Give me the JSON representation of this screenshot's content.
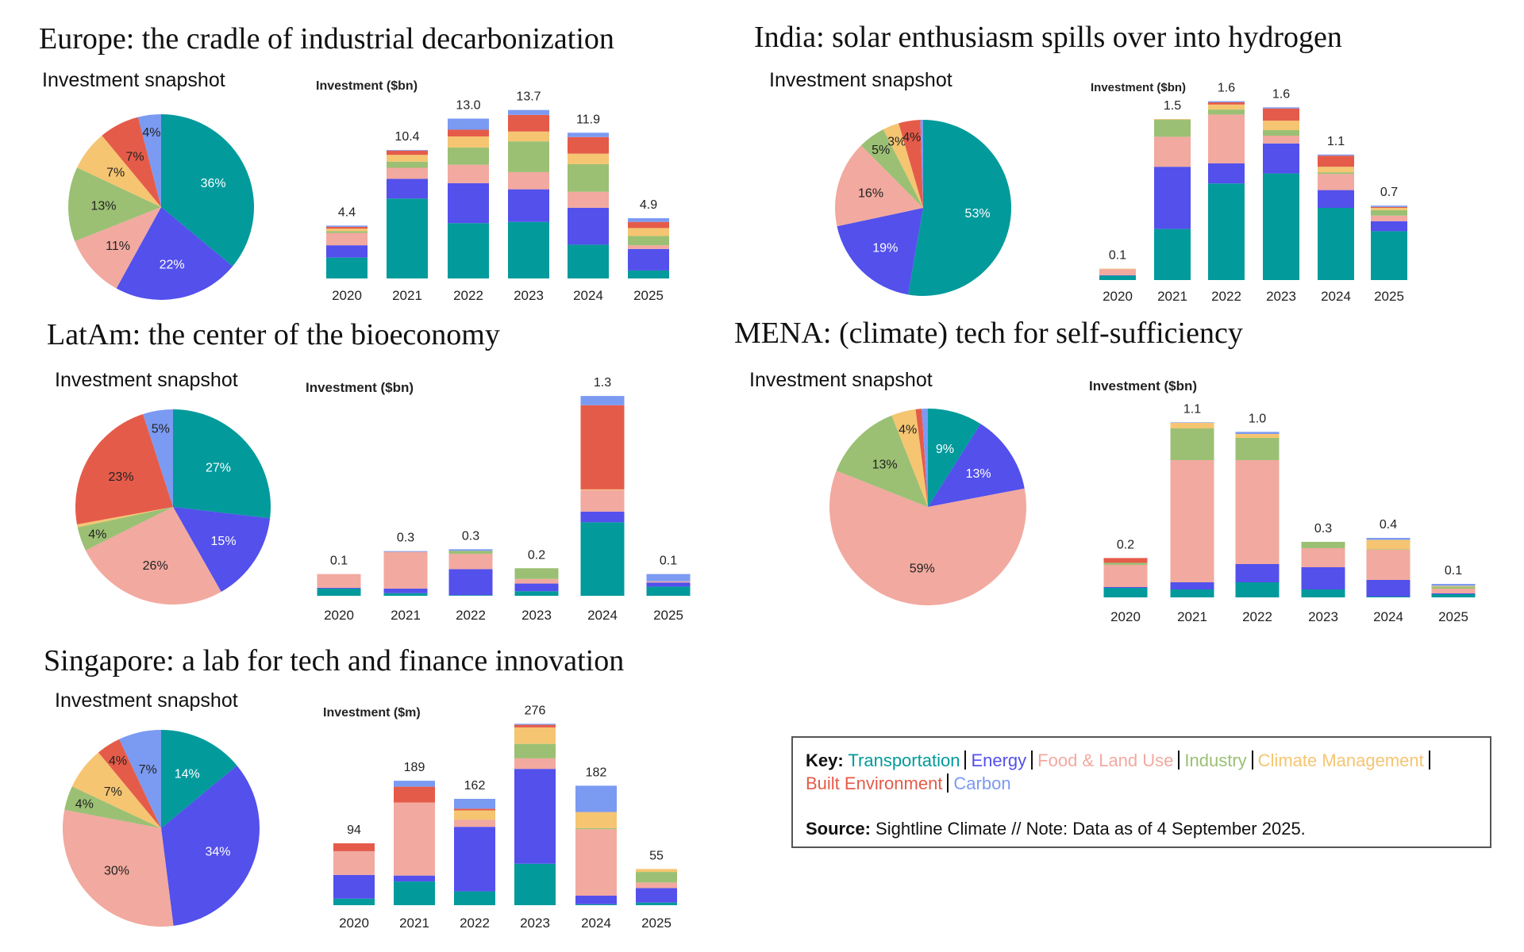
{
  "sectors": [
    {
      "name": "Transportation",
      "color": "#039A9C"
    },
    {
      "name": "Energy",
      "color": "#5350EC"
    },
    {
      "name": "Food & Land Use",
      "color": "#F2A99F"
    },
    {
      "name": "Industry",
      "color": "#9BC074"
    },
    {
      "name": "Climate Management",
      "color": "#F5C571"
    },
    {
      "name": "Built Environment",
      "color": "#E55B49"
    },
    {
      "name": "Carbon",
      "color": "#7B9AF2"
    }
  ],
  "panels": [
    {
      "title": "Europe: the cradle of industrial decarbonization"
    },
    {
      "title": "India: solar enthusiasm spills over into hydrogen"
    },
    {
      "title": "LatAm: the center of the bioeconomy"
    },
    {
      "title": "MENA: (climate) tech for self-sufficiency"
    },
    {
      "title": "Singapore: a lab for tech and finance innovation"
    }
  ],
  "key": {
    "label": "Key:",
    "source_label": "Source:",
    "source_text": "Sightline Climate  //  Note: Data as of 4 September 2025."
  },
  "chart_data": [
    {
      "type": "pie",
      "title": "Investment snapshot",
      "labels": [
        "Transportation",
        "Energy",
        "Food & Land Use",
        "Industry",
        "Climate Management",
        "Built Environment",
        "Carbon"
      ],
      "values": [
        36,
        22,
        11,
        13,
        7,
        7,
        4
      ],
      "value_labels": [
        "36%",
        "22%",
        "11%",
        "13%",
        "7%",
        "7%",
        "4%"
      ]
    },
    {
      "type": "bar",
      "stacked": true,
      "ylabel": "Investment ($bn)",
      "categories": [
        "2020",
        "2021",
        "2022",
        "2023",
        "2024",
        "2025"
      ],
      "total_labels": [
        "4.4",
        "10.4",
        "13.0",
        "13.7",
        "11.9",
        "4.9"
      ],
      "series": [
        {
          "name": "Transportation",
          "values": [
            1.7,
            6.5,
            4.5,
            4.6,
            2.75,
            0.65
          ]
        },
        {
          "name": "Energy",
          "values": [
            1.0,
            1.6,
            3.25,
            2.65,
            3.0,
            1.75
          ]
        },
        {
          "name": "Food & Land Use",
          "values": [
            1.0,
            0.9,
            1.5,
            1.4,
            1.3,
            0.3
          ]
        },
        {
          "name": "Industry",
          "values": [
            0.15,
            0.5,
            1.4,
            2.5,
            2.25,
            0.75
          ]
        },
        {
          "name": "Climate Management",
          "values": [
            0.2,
            0.55,
            0.9,
            0.8,
            0.85,
            0.65
          ]
        },
        {
          "name": "Built Environment",
          "values": [
            0.15,
            0.35,
            0.55,
            1.35,
            1.35,
            0.5
          ]
        },
        {
          "name": "Carbon",
          "values": [
            0.1,
            0.05,
            0.9,
            0.4,
            0.35,
            0.3
          ]
        }
      ]
    },
    {
      "type": "pie",
      "title": "Investment snapshot",
      "labels": [
        "Transportation",
        "Energy",
        "Food & Land Use",
        "Industry",
        "Climate Management",
        "Built Environment",
        "Carbon"
      ],
      "values": [
        53,
        19,
        16,
        5,
        3,
        4,
        0.5
      ],
      "value_labels": [
        "53%",
        "19%",
        "16%",
        "5%",
        "3%",
        "4%",
        ""
      ]
    },
    {
      "type": "bar",
      "stacked": true,
      "ylabel": "Investment ($bn)",
      "categories": [
        "2020",
        "2021",
        "2022",
        "2023",
        "2024",
        "2025"
      ],
      "total_labels": [
        "0.1",
        "1.5",
        "1.6",
        "1.6",
        "1.1",
        "0.7"
      ],
      "series": [
        {
          "name": "Transportation",
          "values": [
            0.04,
            0.46,
            0.87,
            0.96,
            0.65,
            0.44
          ]
        },
        {
          "name": "Energy",
          "values": [
            0.003,
            0.56,
            0.18,
            0.27,
            0.16,
            0.09
          ]
        },
        {
          "name": "Food & Land Use",
          "values": [
            0.055,
            0.27,
            0.44,
            0.07,
            0.145,
            0.05
          ]
        },
        {
          "name": "Industry",
          "values": [
            0.0,
            0.155,
            0.045,
            0.05,
            0.015,
            0.05
          ]
        },
        {
          "name": "Climate Management",
          "values": [
            0.005,
            0.005,
            0.045,
            0.085,
            0.05,
            0.02
          ]
        },
        {
          "name": "Built Environment",
          "values": [
            0.0,
            0.0,
            0.02,
            0.11,
            0.1,
            0.008
          ]
        },
        {
          "name": "Carbon",
          "values": [
            0.0,
            0.0,
            0.01,
            0.01,
            0.01,
            0.012
          ]
        }
      ]
    },
    {
      "type": "pie",
      "title": "Investment snapshot",
      "labels": [
        "Transportation",
        "Energy",
        "Food & Land Use",
        "Industry",
        "Climate Management",
        "Built Environment",
        "Carbon"
      ],
      "values": [
        27,
        15,
        26,
        4,
        0.5,
        23,
        5
      ],
      "value_labels": [
        "27%",
        "15%",
        "26%",
        "4%",
        "",
        "23%",
        "5%"
      ]
    },
    {
      "type": "bar",
      "stacked": true,
      "ylabel": "Investment ($bn)",
      "categories": [
        "2020",
        "2021",
        "2022",
        "2023",
        "2024",
        "2025"
      ],
      "total_labels": [
        "0.1",
        "0.3",
        "0.3",
        "0.2",
        "1.3",
        "0.1"
      ],
      "series": [
        {
          "name": "Transportation",
          "values": [
            0.047,
            0.017,
            0.004,
            0.03,
            0.48,
            0.06
          ]
        },
        {
          "name": "Energy",
          "values": [
            0.005,
            0.03,
            0.17,
            0.05,
            0.07,
            0.027
          ]
        },
        {
          "name": "Food & Land Use",
          "values": [
            0.09,
            0.24,
            0.1,
            0.03,
            0.14,
            0.008
          ]
        },
        {
          "name": "Industry",
          "values": [
            0.0,
            0.0,
            0.02,
            0.07,
            0.0,
            0.0
          ]
        },
        {
          "name": "Climate Management",
          "values": [
            0.0,
            0.0,
            0.0,
            0.0,
            0.005,
            0.0
          ]
        },
        {
          "name": "Built Environment",
          "values": [
            0.0,
            0.0,
            0.0,
            0.0,
            0.55,
            0.0
          ]
        },
        {
          "name": "Carbon",
          "values": [
            0.0,
            0.005,
            0.01,
            0.0,
            0.06,
            0.047
          ]
        }
      ]
    },
    {
      "type": "pie",
      "title": "Investment snapshot",
      "labels": [
        "Transportation",
        "Energy",
        "Food & Land Use",
        "Industry",
        "Climate Management",
        "Built Environment",
        "Carbon"
      ],
      "values": [
        9,
        13,
        59,
        13,
        4,
        1,
        1
      ],
      "value_labels": [
        "9%",
        "13%",
        "59%",
        "13%",
        "4%",
        "",
        ""
      ]
    },
    {
      "type": "bar",
      "stacked": true,
      "ylabel": "Investment ($bn)",
      "categories": [
        "2020",
        "2021",
        "2022",
        "2023",
        "2024",
        "2025"
      ],
      "total_labels": [
        "0.2",
        "1.1",
        "1.0",
        "0.3",
        "0.4",
        "0.1"
      ],
      "series": [
        {
          "name": "Transportation",
          "values": [
            0.06,
            0.05,
            0.095,
            0.05,
            0.005,
            0.02
          ]
        },
        {
          "name": "Energy",
          "values": [
            0.005,
            0.045,
            0.115,
            0.14,
            0.105,
            0.005
          ]
        },
        {
          "name": "Food & Land Use",
          "values": [
            0.14,
            0.77,
            0.655,
            0.12,
            0.19,
            0.03
          ]
        },
        {
          "name": "Industry",
          "values": [
            0.013,
            0.2,
            0.14,
            0.04,
            0.003,
            0.013
          ]
        },
        {
          "name": "Climate Management",
          "values": [
            0.0,
            0.035,
            0.025,
            0.0,
            0.06,
            0.005
          ]
        },
        {
          "name": "Built Environment",
          "values": [
            0.03,
            0.0,
            0.0,
            0.0,
            0.0,
            0.0
          ]
        },
        {
          "name": "Carbon",
          "values": [
            0.0,
            0.003,
            0.013,
            0.0,
            0.012,
            0.012
          ]
        }
      ]
    },
    {
      "type": "pie",
      "title": "Investment snapshot",
      "labels": [
        "Transportation",
        "Energy",
        "Food & Land Use",
        "Industry",
        "Climate Management",
        "Built Environment",
        "Carbon"
      ],
      "values": [
        14,
        34,
        30,
        4,
        7,
        4,
        7
      ],
      "value_labels": [
        "14%",
        "34%",
        "30%",
        "4%",
        "7%",
        "4%",
        "7%"
      ]
    },
    {
      "type": "bar",
      "stacked": true,
      "ylabel": "Investment ($m)",
      "categories": [
        "2020",
        "2021",
        "2022",
        "2023",
        "2024",
        "2025"
      ],
      "total_labels": [
        "94",
        "189",
        "162",
        "276",
        "182",
        "55"
      ],
      "series": [
        {
          "name": "Transportation",
          "values": [
            10,
            36,
            21,
            63,
            1.5,
            4
          ]
        },
        {
          "name": "Energy",
          "values": [
            36,
            9,
            98,
            144,
            13,
            22
          ]
        },
        {
          "name": "Food & Land Use",
          "values": [
            36,
            111,
            11,
            16,
            101,
            8.5
          ]
        },
        {
          "name": "Industry",
          "values": [
            0,
            0,
            0,
            22,
            1.5,
            16
          ]
        },
        {
          "name": "Climate Management",
          "values": [
            0,
            0,
            14,
            25,
            24.5,
            4.5
          ]
        },
        {
          "name": "Built Environment",
          "values": [
            12,
            24,
            2.5,
            4,
            0,
            0
          ]
        },
        {
          "name": "Carbon",
          "values": [
            0,
            9,
            15,
            1.5,
            40,
            0
          ]
        }
      ]
    }
  ]
}
